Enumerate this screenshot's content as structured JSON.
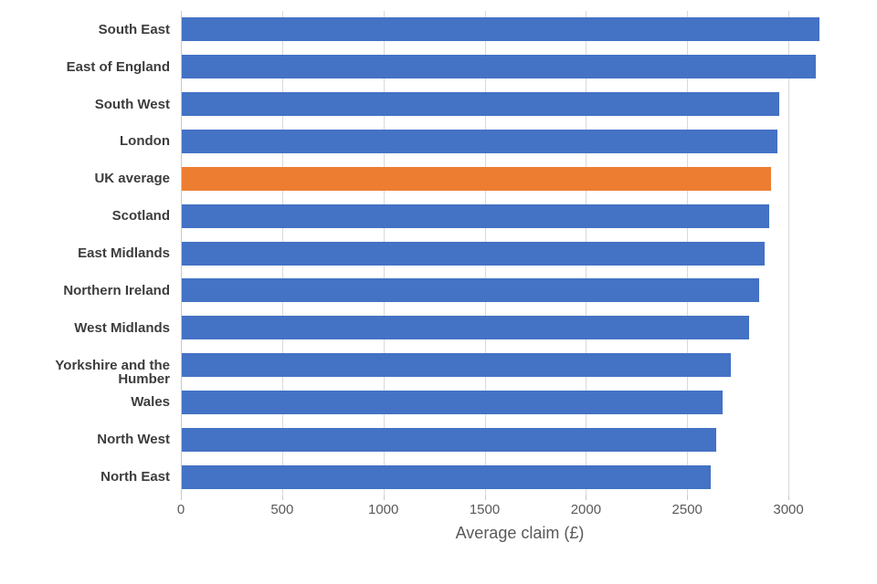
{
  "chart_data": {
    "type": "bar",
    "orientation": "horizontal",
    "title": "",
    "xlabel": "Average claim (£)",
    "ylabel": "",
    "categories": [
      "South East",
      "East of England",
      "South West",
      "London",
      "UK average",
      "Scotland",
      "East Midlands",
      "Northern Ireland",
      "West Midlands",
      "Yorkshire and the Humber",
      "Wales",
      "North West",
      "North East"
    ],
    "values": [
      3150,
      3130,
      2950,
      2940,
      2910,
      2900,
      2880,
      2850,
      2800,
      2710,
      2670,
      2640,
      2610
    ],
    "highlight_category": "UK average",
    "bar_color": "#4472C4",
    "highlight_color": "#ED7D31",
    "x_ticks": [
      0,
      500,
      1000,
      1500,
      2000,
      2500,
      3000
    ],
    "xlim": [
      0,
      3350
    ],
    "grid": true,
    "gridline_color": "#D9D9D9",
    "category_label_color": "#3D3D3D",
    "tick_label_color": "#595959",
    "axis_title_color": "#595959",
    "legend_position": "none"
  }
}
